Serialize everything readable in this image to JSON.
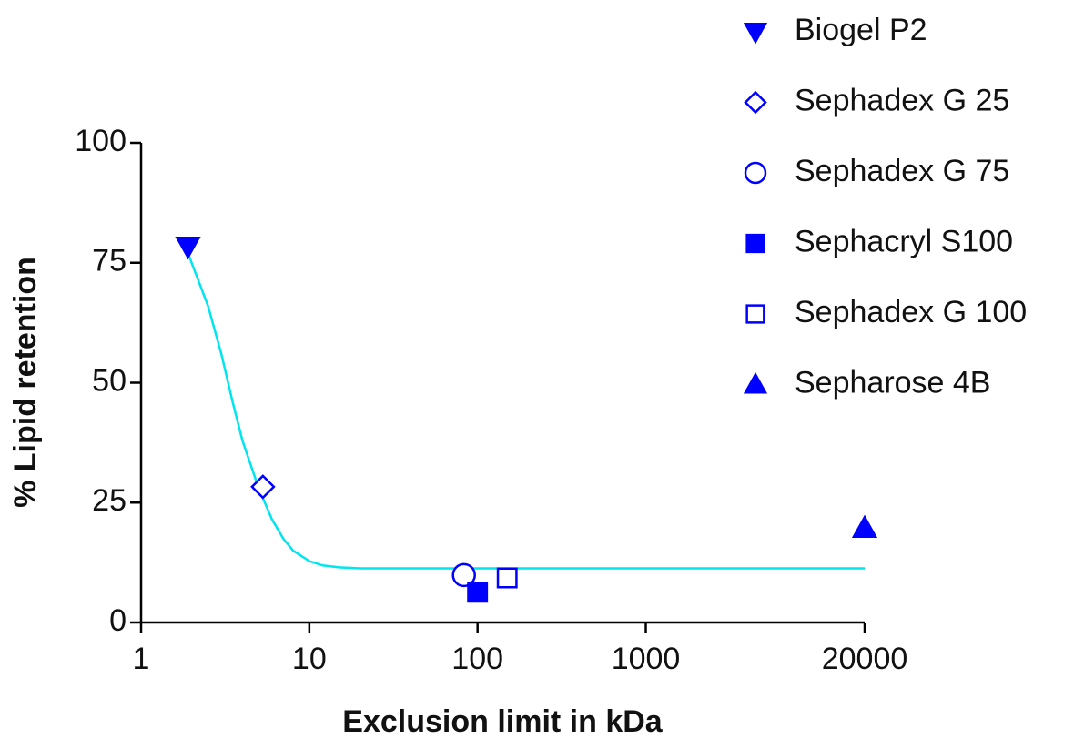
{
  "chart_data": {
    "type": "scatter",
    "x_label": "Exclusion limit in kDa",
    "y_label": "% Lipid retention",
    "xscale": "log",
    "xlim": [
      1,
      20000
    ],
    "xticks": [
      1,
      10,
      100,
      1000,
      20000
    ],
    "ylim": [
      0,
      100
    ],
    "yticks": [
      0,
      25,
      50,
      75,
      100
    ],
    "grid": false,
    "legend": "right",
    "series": [
      {
        "name": "Biogel P2",
        "color": "#0000ff",
        "marker": "triangle-down",
        "filled": true,
        "x": [
          1.9
        ],
        "values": [
          78.4
        ]
      },
      {
        "name": "Sephadex G 25",
        "color": "#0000ff",
        "marker": "diamond",
        "filled": false,
        "x": [
          5.3
        ],
        "values": [
          28.3
        ]
      },
      {
        "name": "Sephadex G 75",
        "color": "#0000ff",
        "marker": "circle",
        "filled": false,
        "x": [
          83
        ],
        "values": [
          9.9
        ]
      },
      {
        "name": "Sephacryl S100",
        "color": "#0000ff",
        "marker": "square",
        "filled": true,
        "x": [
          100
        ],
        "values": [
          6.3
        ]
      },
      {
        "name": "Sephadex G 100",
        "color": "#0000ff",
        "marker": "square",
        "filled": false,
        "x": [
          150
        ],
        "values": [
          9.3
        ]
      },
      {
        "name": "Sepharose 4B",
        "color": "#0000ff",
        "marker": "triangle-up",
        "filled": true,
        "x": [
          20000
        ],
        "values": [
          19.7
        ]
      }
    ],
    "curve": {
      "color": "#00e5ee",
      "x": [
        1.9,
        2.5,
        3,
        3.5,
        4,
        5,
        6,
        7,
        8,
        10,
        12,
        15,
        20,
        30,
        100,
        1000,
        20000
      ],
      "values": [
        77,
        66,
        56,
        46,
        38,
        28,
        21.5,
        17.5,
        15,
        12.8,
        11.9,
        11.5,
        11.3,
        11.3,
        11.3,
        11.3,
        11.3
      ]
    }
  }
}
